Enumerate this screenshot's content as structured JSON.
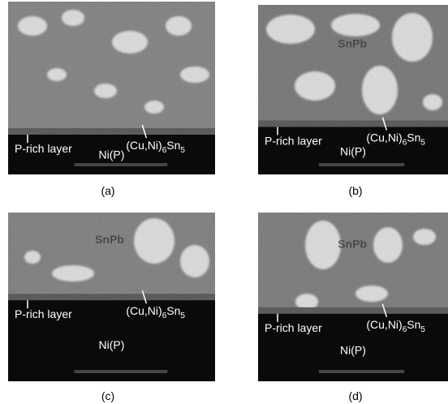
{
  "panels": [
    {
      "label": "(a)",
      "annotations": {
        "p_rich": "P-rich layer",
        "imc": [
          "(Cu,Ni)",
          "6",
          "Sn",
          "5"
        ],
        "substrate": "Ni(P)"
      }
    },
    {
      "label": "(b)",
      "annotations": {
        "phase": "SnPb",
        "p_rich": "P-rich layer",
        "imc": [
          "(Cu,Ni)",
          "6",
          "Sn",
          "5"
        ],
        "substrate": "Ni(P)"
      }
    },
    {
      "label": "(c)",
      "annotations": {
        "phase": "SnPb",
        "p_rich": "P-rich layer",
        "imc": [
          "(Cu,Ni)",
          "6",
          "Sn",
          "5"
        ],
        "substrate": "Ni(P)"
      }
    },
    {
      "label": "(d)",
      "annotations": {
        "phase": "SnPb",
        "p_rich": "P-rich layer",
        "imc": [
          "(Cu,Ni)",
          "6",
          "Sn",
          "5"
        ],
        "substrate": "Ni(P)"
      }
    }
  ]
}
